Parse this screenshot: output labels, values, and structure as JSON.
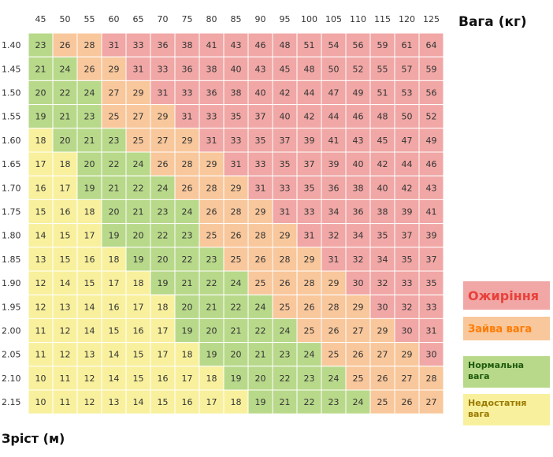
{
  "chart_data": {
    "type": "table",
    "x_title": "Вага (кг)",
    "y_title": "Зріст (м)",
    "x": [
      "45",
      "50",
      "55",
      "60",
      "65",
      "70",
      "75",
      "80",
      "85",
      "90",
      "95",
      "100",
      "105",
      "110",
      "115",
      "120",
      "125"
    ],
    "y": [
      "1.40",
      "1.45",
      "1.50",
      "1.55",
      "1.60",
      "1.65",
      "1.70",
      "1.75",
      "1.80",
      "1.85",
      "1.90",
      "1.95",
      "2.00",
      "2.05",
      "2.10",
      "2.15"
    ],
    "values": [
      [
        23,
        26,
        28,
        31,
        33,
        36,
        38,
        41,
        43,
        46,
        48,
        51,
        54,
        56,
        59,
        61,
        64
      ],
      [
        21,
        24,
        26,
        29,
        31,
        33,
        36,
        38,
        40,
        43,
        45,
        48,
        50,
        52,
        55,
        57,
        59
      ],
      [
        20,
        22,
        24,
        27,
        29,
        31,
        33,
        36,
        38,
        40,
        42,
        44,
        47,
        49,
        51,
        53,
        56
      ],
      [
        19,
        21,
        23,
        25,
        27,
        29,
        31,
        33,
        35,
        37,
        40,
        42,
        44,
        46,
        48,
        50,
        52
      ],
      [
        18,
        20,
        21,
        23,
        25,
        27,
        29,
        31,
        33,
        35,
        37,
        39,
        41,
        43,
        45,
        47,
        49
      ],
      [
        17,
        18,
        20,
        22,
        24,
        26,
        28,
        29,
        31,
        33,
        35,
        37,
        39,
        40,
        42,
        44,
        46
      ],
      [
        16,
        17,
        19,
        21,
        22,
        24,
        26,
        28,
        29,
        31,
        33,
        35,
        36,
        38,
        40,
        42,
        43
      ],
      [
        15,
        16,
        18,
        20,
        21,
        23,
        24,
        26,
        28,
        29,
        31,
        33,
        34,
        36,
        38,
        39,
        41
      ],
      [
        14,
        15,
        17,
        19,
        20,
        22,
        23,
        25,
        26,
        28,
        29,
        31,
        32,
        34,
        35,
        37,
        39
      ],
      [
        13,
        15,
        16,
        18,
        19,
        20,
        22,
        23,
        25,
        26,
        28,
        29,
        31,
        32,
        34,
        35,
        37
      ],
      [
        12,
        14,
        15,
        17,
        18,
        19,
        21,
        22,
        24,
        25,
        26,
        28,
        29,
        30,
        32,
        33,
        35
      ],
      [
        12,
        13,
        14,
        16,
        17,
        18,
        20,
        21,
        22,
        24,
        25,
        26,
        28,
        29,
        30,
        32,
        33
      ],
      [
        11,
        12,
        14,
        15,
        16,
        17,
        19,
        20,
        21,
        22,
        24,
        25,
        26,
        27,
        29,
        30,
        31
      ],
      [
        11,
        12,
        13,
        14,
        15,
        17,
        18,
        19,
        20,
        21,
        23,
        24,
        25,
        26,
        27,
        29,
        30
      ],
      [
        10,
        11,
        12,
        14,
        15,
        16,
        17,
        18,
        19,
        20,
        22,
        23,
        24,
        25,
        26,
        27,
        28
      ],
      [
        10,
        11,
        12,
        13,
        14,
        15,
        16,
        17,
        18,
        19,
        21,
        22,
        23,
        24,
        25,
        26,
        27
      ]
    ],
    "categories_legend": [
      {
        "label": "Ожиріння",
        "color": "#f0a7a5",
        "text_color": "#e8413c",
        "min": 30
      },
      {
        "label": "Зайва вага",
        "color": "#f8c79b",
        "text_color": "#ff7a00",
        "min": 25,
        "max": 29
      },
      {
        "label": "Нормальна вага",
        "color": "#b8d98a",
        "text_color": "#1f5a0e",
        "min": 19,
        "max": 24
      },
      {
        "label": "Недостатня вага",
        "color": "#f8f09d",
        "text_color": "#9a7a00",
        "max": 18
      }
    ],
    "grid": true,
    "legend_position": "right"
  }
}
